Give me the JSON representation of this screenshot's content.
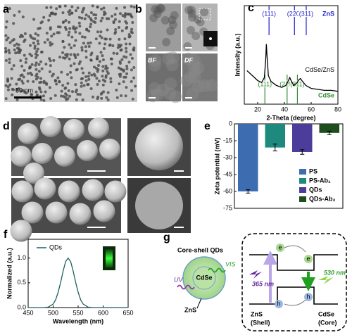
{
  "panel_labels": [
    "a",
    "b",
    "c",
    "d",
    "e",
    "f",
    "g"
  ],
  "panel_a": {
    "scale_bar": "50 nm"
  },
  "panel_b": {
    "bf": "BF",
    "df": "DF"
  },
  "chart_data": [
    {
      "type": "line",
      "xlabel": "2-Theta (degree)",
      "ylabel": "Intensity (a.u.)",
      "xlim": [
        10,
        80
      ],
      "xticks": [
        20,
        40,
        60,
        80
      ],
      "ylim": [
        0,
        100
      ],
      "series": [
        {
          "name": "CdSe/ZnS",
          "color": "#000000",
          "x": [
            12,
            16,
            20,
            23,
            25,
            26,
            26.5,
            27,
            28,
            30,
            34,
            38,
            41,
            43,
            44,
            45,
            47,
            49,
            51,
            52,
            53,
            56,
            60,
            65,
            70,
            75,
            80
          ],
          "values": [
            34,
            29,
            24,
            22,
            27,
            45,
            61,
            49,
            29,
            23,
            19,
            17,
            19,
            24,
            27,
            24,
            19,
            21,
            25,
            26,
            24,
            19,
            16,
            15,
            14,
            14,
            13
          ]
        }
      ],
      "reference_sets": [
        {
          "name": "ZnS",
          "color": "#1c1ccc",
          "peaks": [
            {
              "label": "(111)",
              "x": 28.5
            },
            {
              "label": "(220)",
              "x": 47.5
            },
            {
              "label": "(311)",
              "x": 56.3
            }
          ]
        },
        {
          "name": "CdSe",
          "color": "#2e8b2e",
          "peaks": [
            {
              "label": "(111)",
              "x": 25.4
            },
            {
              "label": "(220)",
              "x": 42
            },
            {
              "label": "(311)",
              "x": 49.7
            }
          ]
        }
      ]
    },
    {
      "type": "bar",
      "ylabel": "Zeta potential (mV)",
      "categories": [
        "PS",
        "PS-Ab₁",
        "QDs",
        "QDs-Ab₂"
      ],
      "values": [
        -60,
        -21,
        -25,
        -8
      ],
      "errors": [
        1.5,
        3,
        2,
        1.5
      ],
      "colors": [
        "#3d6db0",
        "#1e8a7e",
        "#4b3d99",
        "#1e4d1e"
      ],
      "ylim": [
        -75,
        0
      ],
      "yticks": [
        0,
        -15,
        -30,
        -45,
        -60,
        -75
      ],
      "legend": "lower-right"
    },
    {
      "type": "line",
      "xlabel": "Wavelength (nm)",
      "ylabel": "Normalized (a.u.)",
      "xlim": [
        450,
        650
      ],
      "xticks": [
        450,
        500,
        550,
        600,
        650
      ],
      "ylim": [
        0,
        1.38
      ],
      "yticks": [
        {
          "value": 0,
          "label": "0.0"
        },
        {
          "value": 0.5,
          "label": "0.5"
        },
        {
          "value": 1,
          "label": "1.0"
        }
      ],
      "series": [
        {
          "name": "QDs",
          "color": "#1e5e5e",
          "x": [
            450,
            480,
            490,
            500,
            505,
            510,
            515,
            520,
            525,
            530,
            535,
            540,
            545,
            550,
            555,
            560,
            570,
            580,
            650
          ],
          "values": [
            0,
            0,
            0.009,
            0.07,
            0.157,
            0.31,
            0.51,
            0.74,
            0.93,
            1,
            0.93,
            0.74,
            0.51,
            0.31,
            0.157,
            0.07,
            0.009,
            0,
            0
          ]
        }
      ],
      "legend": "upper-left"
    }
  ],
  "panel_g": {
    "title": "Core-shell QDs",
    "uv": "UV",
    "vis": "VIS",
    "core": "CdSe",
    "shell": "ZnS",
    "electrons": [
      "e",
      "e"
    ],
    "holes": [
      "h",
      "h"
    ],
    "excitation": "365 nm",
    "emission": "530 nm",
    "shell_label": [
      "ZnS",
      "(Shell)"
    ],
    "core_label": [
      "CdSe",
      "(Core)"
    ]
  }
}
